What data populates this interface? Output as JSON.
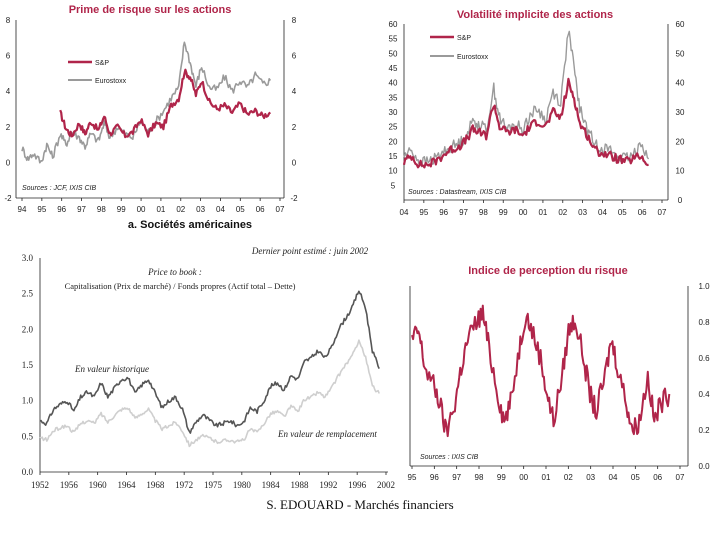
{
  "footer": "S. EDOUARD - Marchés financiers",
  "chart_data": [
    {
      "id": "equity-risk-premium",
      "type": "line",
      "title": "Prime de risque sur les actions",
      "subtitle": "a. Sociétés américaines",
      "source": "Sources : JCF, IXIS CIB",
      "x_labels": [
        "94",
        "95",
        "96",
        "97",
        "98",
        "99",
        "00",
        "01",
        "02",
        "03",
        "04",
        "05",
        "06",
        "07"
      ],
      "xlim": [
        1994,
        2007.5
      ],
      "ylim": [
        -2,
        8
      ],
      "y_ticks_left": [
        "8",
        "6",
        "4",
        "2",
        "0",
        "-2"
      ],
      "y_ticks_right": [
        "8",
        "6",
        "4",
        "2",
        "0",
        "-2"
      ],
      "y_tick_values": [
        8,
        6,
        4,
        2,
        0,
        -2
      ],
      "series": [
        {
          "name": "S&P",
          "color": "#b0254a",
          "x": [
            1996.0,
            1996.3,
            1996.6,
            1997.0,
            1997.3,
            1997.6,
            1998.0,
            1998.3,
            1998.6,
            1999.0,
            1999.4,
            1999.8,
            2000.2,
            2000.6,
            2001.0,
            2001.4,
            2001.8,
            2002.2,
            2002.5,
            2002.8,
            2003.1,
            2003.4,
            2003.8,
            2004.2,
            2004.6,
            2005.0,
            2005.4,
            2005.8,
            2006.2,
            2006.6,
            2007.0
          ],
          "values": [
            2.8,
            1.9,
            1.5,
            2.2,
            1.6,
            2.3,
            1.8,
            2.6,
            1.6,
            2.0,
            1.5,
            1.7,
            2.4,
            1.6,
            2.2,
            2.0,
            3.2,
            3.6,
            5.1,
            4.8,
            3.8,
            4.6,
            3.4,
            3.0,
            3.2,
            2.8,
            3.3,
            2.7,
            2.9,
            2.6,
            2.8
          ]
        },
        {
          "name": "Eurostoxx",
          "color": "#9a9a9a",
          "x": [
            1994.0,
            1994.3,
            1994.6,
            1995.0,
            1995.3,
            1995.6,
            1996.0,
            1996.3,
            1996.6,
            1997.0,
            1997.3,
            1997.6,
            1998.0,
            1998.3,
            1998.6,
            1999.0,
            1999.4,
            1999.8,
            2000.2,
            2000.6,
            2001.0,
            2001.4,
            2001.8,
            2002.2,
            2002.5,
            2002.8,
            2003.1,
            2003.4,
            2003.8,
            2004.2,
            2004.6,
            2005.0,
            2005.4,
            2005.8,
            2006.2,
            2006.6,
            2007.0
          ],
          "values": [
            0.8,
            0.2,
            0.5,
            0.0,
            1.0,
            0.3,
            1.6,
            1.0,
            1.7,
            1.4,
            0.9,
            1.6,
            1.2,
            2.2,
            1.4,
            2.0,
            1.6,
            1.4,
            2.3,
            1.7,
            2.3,
            2.9,
            3.6,
            4.2,
            6.8,
            5.6,
            4.3,
            5.4,
            4.2,
            4.1,
            4.8,
            4.0,
            4.6,
            4.2,
            4.9,
            4.4,
            4.6
          ]
        }
      ]
    },
    {
      "id": "implied-volatility",
      "type": "line",
      "title": "Volatilité implicite des actions",
      "source": "Sources : Datastream, IXIS CIB",
      "x_labels": [
        "04",
        "95",
        "96",
        "97",
        "98",
        "99",
        "00",
        "01",
        "02",
        "03",
        "04",
        "05",
        "06",
        "07"
      ],
      "xlim": [
        1994,
        2007.5
      ],
      "ylim": [
        0,
        60
      ],
      "y_ticks_left": [
        "60",
        "55",
        "50",
        "45",
        "40",
        "35",
        "30",
        "25",
        "20",
        "15",
        "10",
        "5"
      ],
      "y_tick_values_left": [
        60,
        55,
        50,
        45,
        40,
        35,
        30,
        25,
        20,
        15,
        10,
        5
      ],
      "y_ticks_right": [
        "60",
        "50",
        "40",
        "30",
        "20",
        "10",
        "0"
      ],
      "y_tick_values_right": [
        60,
        50,
        40,
        30,
        20,
        10,
        0
      ],
      "series": [
        {
          "name": "S&P",
          "color": "#b0254a",
          "x": [
            1994.0,
            1994.4,
            1994.8,
            1995.2,
            1995.6,
            1996.0,
            1996.4,
            1996.8,
            1997.2,
            1997.6,
            1997.9,
            1998.3,
            1998.7,
            1999.0,
            1999.4,
            1999.8,
            2000.2,
            2000.6,
            2001.0,
            2001.4,
            2001.8,
            2002.2,
            2002.6,
            2002.9,
            2003.2,
            2003.6,
            2004.0,
            2004.4,
            2004.8,
            2005.2,
            2005.6,
            2006.0,
            2006.4,
            2006.8
          ],
          "values": [
            13,
            15,
            12,
            12,
            13,
            15,
            17,
            18,
            20,
            24,
            23,
            22,
            33,
            25,
            23,
            24,
            22,
            25,
            27,
            25,
            30,
            28,
            40,
            35,
            26,
            22,
            17,
            16,
            15,
            14,
            13,
            14,
            15,
            12
          ]
        },
        {
          "name": "Eurostoxx",
          "color": "#9a9a9a",
          "x": [
            1994.0,
            1994.4,
            1994.8,
            1995.2,
            1995.6,
            1996.0,
            1996.4,
            1996.8,
            1997.2,
            1997.6,
            1997.9,
            1998.3,
            1998.7,
            1999.0,
            1999.4,
            1999.8,
            2000.2,
            2000.6,
            2001.0,
            2001.4,
            2001.8,
            2002.2,
            2002.6,
            2002.9,
            2003.2,
            2003.6,
            2004.0,
            2004.4,
            2004.8,
            2005.2,
            2005.6,
            2006.0,
            2006.4,
            2006.8
          ],
          "values": [
            15,
            17,
            13,
            13,
            14,
            16,
            18,
            19,
            21,
            27,
            26,
            24,
            38,
            28,
            24,
            26,
            24,
            29,
            31,
            27,
            37,
            33,
            58,
            45,
            31,
            24,
            19,
            18,
            17,
            15,
            14,
            15,
            20,
            14
          ]
        }
      ]
    },
    {
      "id": "price-to-book",
      "type": "line",
      "title": "Dernier point estimé : juin 2002",
      "legend_box": "Price to book :",
      "formula": "Capitalisation (Prix de marché) / Fonds propres (Actif total – Dette)",
      "x_labels": [
        "1952",
        "1956",
        "1960",
        "1964",
        "1968",
        "1972",
        "1975",
        "1980",
        "1984",
        "1988",
        "1992",
        "1996",
        "2002"
      ],
      "xlim": [
        1952,
        2003
      ],
      "ylim": [
        0,
        3
      ],
      "y_ticks": [
        "3.0",
        "2.5",
        "2.0",
        "1.5",
        "1.0",
        "0.5",
        "0.0"
      ],
      "y_tick_values": [
        3,
        2.5,
        2,
        1.5,
        1,
        0.5,
        0
      ],
      "series": [
        {
          "name": "En valeur historique",
          "color": "#555555",
          "x": [
            1952,
            1953,
            1954,
            1955,
            1956,
            1957,
            1958,
            1959,
            1960,
            1961,
            1962,
            1963,
            1964,
            1965,
            1966,
            1967,
            1968,
            1969,
            1970,
            1971,
            1972,
            1973,
            1974,
            1975,
            1976,
            1977,
            1978,
            1979,
            1980,
            1981,
            1982,
            1983,
            1984,
            1985,
            1986,
            1987,
            1988,
            1989,
            1990,
            1991,
            1992,
            1993,
            1994,
            1995,
            1996,
            1997,
            1998,
            1999,
            2000,
            2001,
            2002
          ],
          "values": [
            0.72,
            0.68,
            0.88,
            0.95,
            1.0,
            0.85,
            1.05,
            1.12,
            1.05,
            1.25,
            1.05,
            1.18,
            1.3,
            1.32,
            1.1,
            1.22,
            1.3,
            1.1,
            0.9,
            1.0,
            1.05,
            0.88,
            0.55,
            0.7,
            0.8,
            0.72,
            0.65,
            0.68,
            0.72,
            0.65,
            0.7,
            0.9,
            0.85,
            1.0,
            1.2,
            1.25,
            1.15,
            1.35,
            1.3,
            1.55,
            1.6,
            1.7,
            1.6,
            1.75,
            2.0,
            2.15,
            2.3,
            2.55,
            2.3,
            1.7,
            1.45
          ]
        },
        {
          "name": "En valeur de remplacement",
          "color": "#cfcfcf",
          "x": [
            1952,
            1953,
            1954,
            1955,
            1956,
            1957,
            1958,
            1959,
            1960,
            1961,
            1962,
            1963,
            1964,
            1965,
            1966,
            1967,
            1968,
            1969,
            1970,
            1971,
            1972,
            1973,
            1974,
            1975,
            1976,
            1977,
            1978,
            1979,
            1980,
            1981,
            1982,
            1983,
            1984,
            1985,
            1986,
            1987,
            1988,
            1989,
            1990,
            1991,
            1992,
            1993,
            1994,
            1995,
            1996,
            1997,
            1998,
            1999,
            2000,
            2001,
            2002
          ],
          "values": [
            0.48,
            0.45,
            0.58,
            0.62,
            0.65,
            0.55,
            0.68,
            0.72,
            0.68,
            0.82,
            0.7,
            0.8,
            0.88,
            0.9,
            0.75,
            0.82,
            0.88,
            0.72,
            0.6,
            0.65,
            0.7,
            0.58,
            0.38,
            0.45,
            0.5,
            0.48,
            0.42,
            0.44,
            0.45,
            0.42,
            0.45,
            0.6,
            0.55,
            0.68,
            0.82,
            0.85,
            0.78,
            0.92,
            0.85,
            1.02,
            1.05,
            1.12,
            1.05,
            1.18,
            1.35,
            1.5,
            1.62,
            1.85,
            1.6,
            1.2,
            1.1
          ]
        }
      ]
    },
    {
      "id": "risk-perception-index",
      "type": "line",
      "title": "Indice de perception du risque",
      "source": "Sources : IXIS CIB",
      "x_labels": [
        "95",
        "96",
        "97",
        "98",
        "99",
        "00",
        "01",
        "02",
        "03",
        "04",
        "05",
        "06",
        "07"
      ],
      "xlim": [
        1995,
        2007.5
      ],
      "ylim": [
        0,
        1
      ],
      "y_ticks": [
        "1.0",
        "0.8",
        "0.6",
        "0.4",
        "0.2",
        "0.0"
      ],
      "y_tick_values": [
        1,
        0.8,
        0.6,
        0.4,
        0.2,
        0
      ],
      "series": [
        {
          "name": "Indice",
          "color": "#b0254a",
          "x": [
            1995.0,
            1995.3,
            1995.6,
            1996.0,
            1996.3,
            1996.6,
            1997.0,
            1997.3,
            1997.6,
            1998.0,
            1998.3,
            1998.6,
            1999.0,
            1999.3,
            1999.6,
            2000.0,
            2000.3,
            2000.6,
            2001.0,
            2001.3,
            2001.6,
            2002.0,
            2002.3,
            2002.6,
            2003.0,
            2003.3,
            2003.6,
            2004.0,
            2004.3,
            2004.6,
            2005.0,
            2005.3,
            2005.6,
            2006.0,
            2006.3,
            2006.6,
            2007.0
          ],
          "values": [
            0.7,
            0.75,
            0.55,
            0.45,
            0.35,
            0.18,
            0.35,
            0.55,
            0.7,
            0.8,
            0.85,
            0.65,
            0.4,
            0.25,
            0.35,
            0.65,
            0.85,
            0.75,
            0.6,
            0.4,
            0.25,
            0.5,
            0.75,
            0.82,
            0.6,
            0.4,
            0.3,
            0.5,
            0.7,
            0.55,
            0.35,
            0.2,
            0.25,
            0.5,
            0.25,
            0.35,
            0.4
          ]
        }
      ]
    }
  ]
}
